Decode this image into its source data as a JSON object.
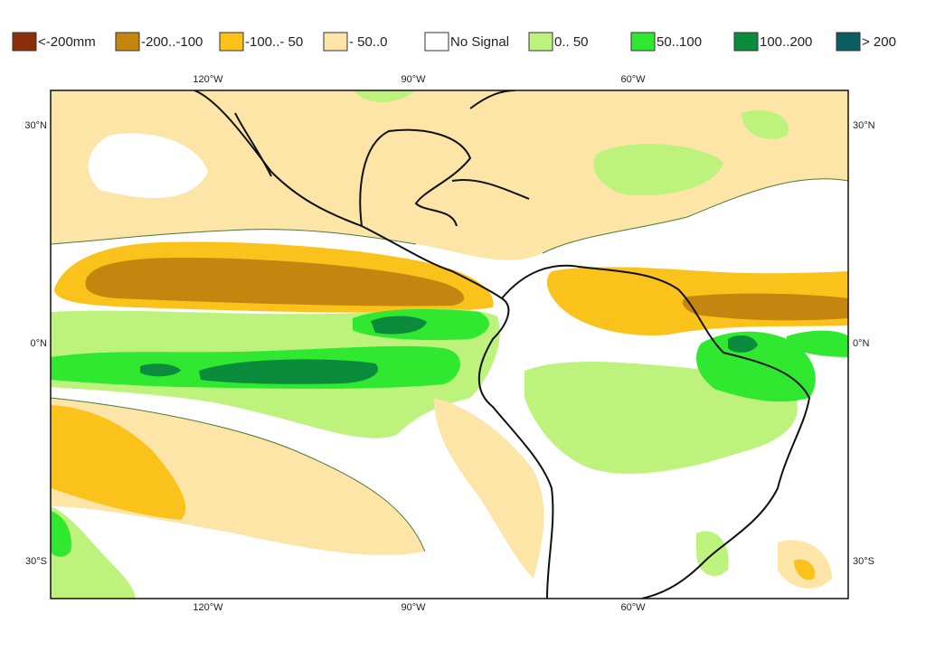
{
  "legend": [
    {
      "label": "<-200mm",
      "color": "#8b2e0a"
    },
    {
      "label": "-200..-100",
      "color": "#c4860e"
    },
    {
      "label": "-100..- 50",
      "color": "#fbc21c"
    },
    {
      "label": "- 50..0",
      "color": "#fde5a8"
    },
    {
      "label": "No Signal",
      "color": "#ffffff"
    },
    {
      "label": "0.. 50",
      "color": "#bdf27c"
    },
    {
      "label": "50..100",
      "color": "#2fe82f"
    },
    {
      "label": "100..200",
      "color": "#0b8c3c"
    },
    {
      "label": "> 200",
      "color": "#0a5d60"
    }
  ],
  "map": {
    "top_labels": [
      "120°W",
      "90°W",
      "60°W"
    ],
    "bottom_labels": [
      "120°W",
      "90°W",
      "60°W"
    ],
    "left_labels": [
      "30°N",
      "0°N",
      "30°S"
    ],
    "right_labels": [
      "30°N",
      "0°N",
      "30°S"
    ]
  }
}
